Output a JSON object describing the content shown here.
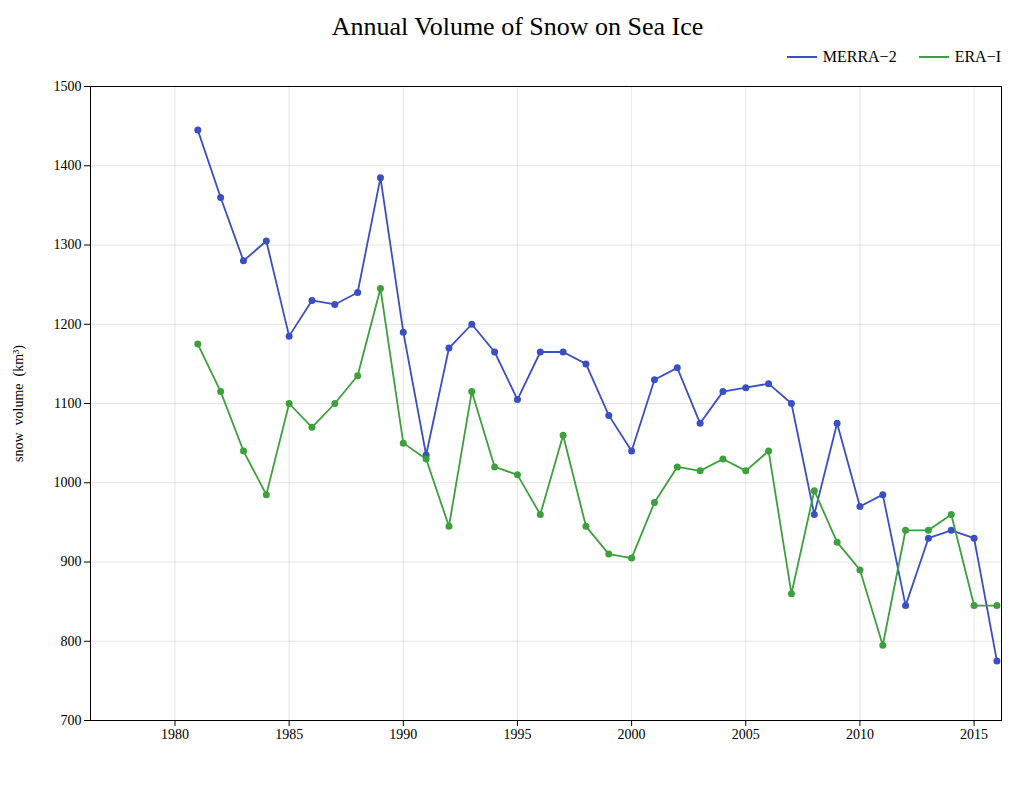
{
  "chart_data": {
    "type": "line",
    "title": "Annual Volume of Snow on Sea Ice",
    "ylabel": "snow  volume  (km³)",
    "x": [
      1981,
      1982,
      1983,
      1984,
      1985,
      1986,
      1987,
      1988,
      1989,
      1990,
      1991,
      1992,
      1993,
      1994,
      1995,
      1996,
      1997,
      1998,
      1999,
      2000,
      2001,
      2002,
      2003,
      2004,
      2005,
      2006,
      2007,
      2008,
      2009,
      2010,
      2011,
      2012,
      2013,
      2014,
      2015,
      2016
    ],
    "series": [
      {
        "name": "MERRA−2",
        "color": "#3a4fc4",
        "values": [
          1445,
          1360,
          1280,
          1305,
          1185,
          1230,
          1225,
          1240,
          1385,
          1190,
          1035,
          1170,
          1200,
          1165,
          1105,
          1165,
          1165,
          1150,
          1085,
          1040,
          1130,
          1145,
          1075,
          1115,
          1120,
          1125,
          1100,
          960,
          1075,
          970,
          985,
          845,
          930,
          940,
          930,
          775
        ]
      },
      {
        "name": "ERA−I",
        "color": "#3ca03c",
        "values": [
          1175,
          1115,
          1040,
          985,
          1100,
          1070,
          1100,
          1135,
          1245,
          1050,
          1030,
          945,
          1115,
          1020,
          1010,
          960,
          1060,
          945,
          910,
          905,
          975,
          1020,
          1015,
          1030,
          1015,
          1040,
          860,
          990,
          925,
          890,
          795,
          940,
          940,
          960,
          845,
          845
        ]
      }
    ],
    "marker": "circle",
    "xlim": [
      1976.3,
      2016.2
    ],
    "xticks": [
      1980,
      1985,
      1990,
      1995,
      2000,
      2005,
      2010,
      2015
    ],
    "ylim": [
      700,
      1500
    ],
    "yticks": [
      700,
      800,
      900,
      1000,
      1100,
      1200,
      1300,
      1400,
      1500
    ],
    "grid": true,
    "legend": "upper right"
  }
}
